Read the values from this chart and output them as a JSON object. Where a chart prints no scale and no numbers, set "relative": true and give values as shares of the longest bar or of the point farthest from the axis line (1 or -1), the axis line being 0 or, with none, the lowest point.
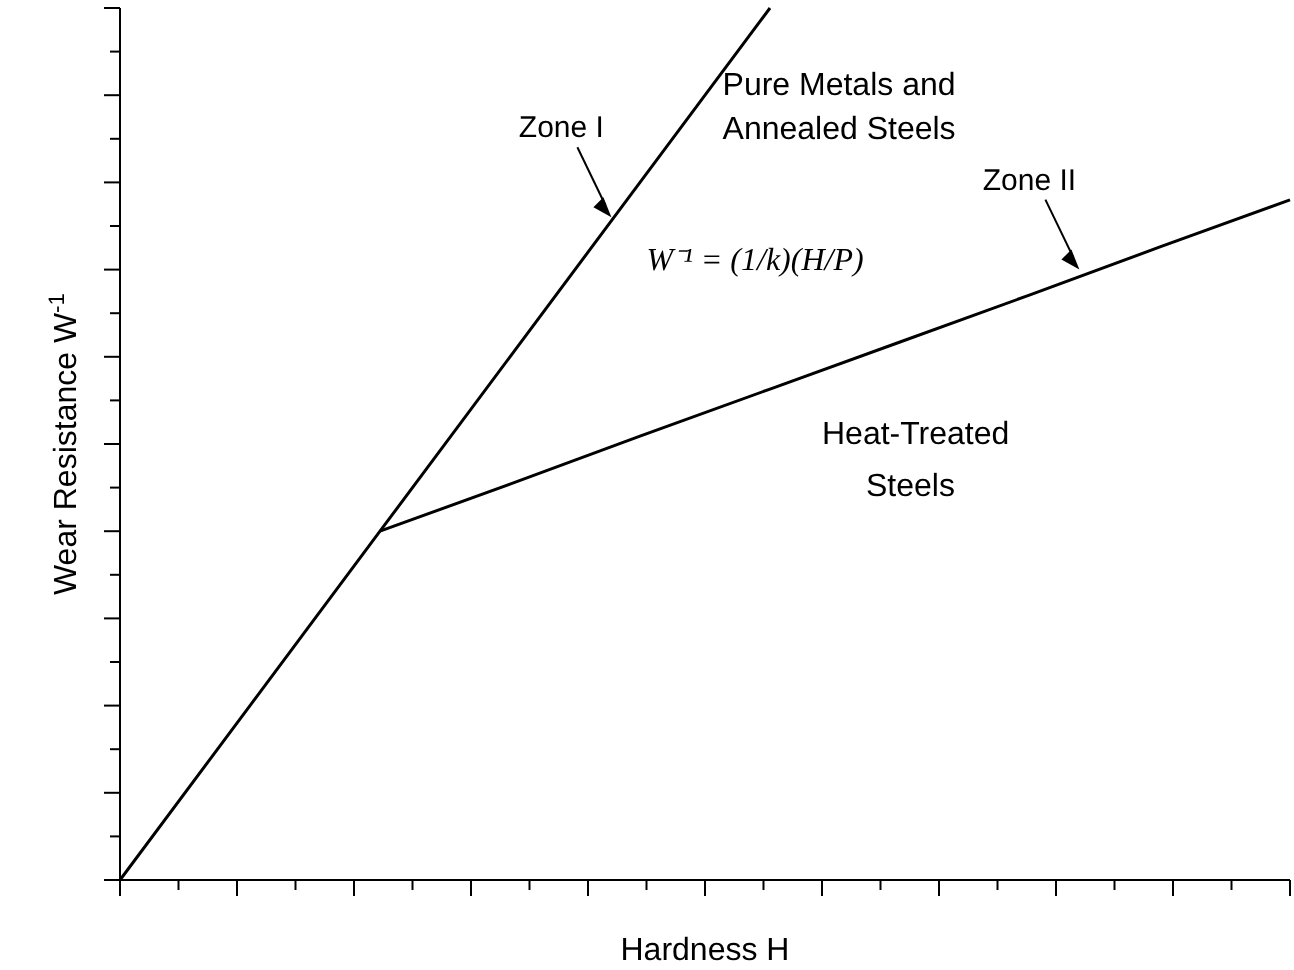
{
  "chart_data": {
    "type": "line",
    "relative": true,
    "xlabel": "Hardness H",
    "ylabel": "Wear Resistance W$^{-1}$",
    "categories": [
      null,
      null,
      null,
      null,
      null,
      null,
      null,
      null,
      null,
      null
    ],
    "series": [
      {
        "color": "#000000",
        "values": [
          0,
          0.2,
          0.4,
          0.6,
          0.8,
          1,
          null,
          null,
          null,
          null
        ]
      },
      {
        "color": "#000000",
        "values": [
          null,
          null,
          0.4,
          0.454,
          0.509,
          0.563,
          0.617,
          0.671,
          0.726,
          0.78
        ]
      }
    ],
    "annotations": [
      "Zone I",
      "Zone II",
      "Pure Metals and Annealed Steels",
      "W⁻¹ = (1/k)(H/P)",
      "Heat-Treated Steels"
    ]
  }
}
